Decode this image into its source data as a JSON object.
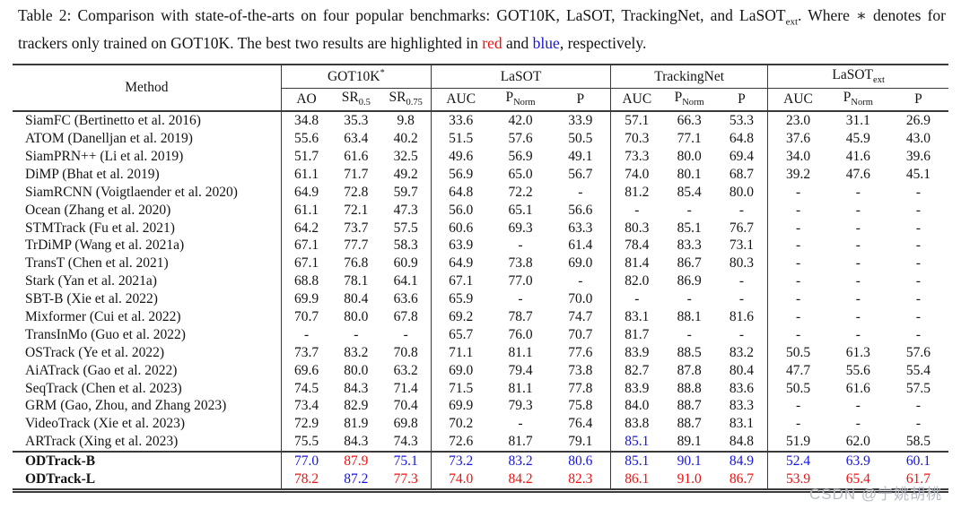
{
  "colors": {
    "red": "#ee1111",
    "blue": "#1515dd",
    "text": "#141414",
    "rule": "#3a3a3a",
    "watermark": "#b7bdc6"
  },
  "caption": {
    "segments": [
      {
        "t": "Table 2: Comparison with state-of-the-arts on four popular benchmarks: GOT10K, LaSOT, TrackingNet, and LaSOT"
      },
      {
        "t": "ext",
        "sub": true
      },
      {
        "t": ". Where ∗ denotes for trackers only trained on GOT10K. The best two results are highlighted in "
      },
      {
        "t": "red",
        "c": "red"
      },
      {
        "t": " and "
      },
      {
        "t": "blue",
        "c": "blue"
      },
      {
        "t": ", respectively."
      }
    ]
  },
  "watermark": "CSDN @宁姚胡桃",
  "table": {
    "method_header": "Method",
    "groups": [
      {
        "base": "GOT10K",
        "sup": "*",
        "cols": [
          {
            "base": "AO"
          },
          {
            "base": "SR",
            "sub": "0.5"
          },
          {
            "base": "SR",
            "sub": "0.75"
          }
        ]
      },
      {
        "base": "LaSOT",
        "cols": [
          {
            "base": "AUC"
          },
          {
            "base": "P",
            "sub": "Norm"
          },
          {
            "base": "P"
          }
        ]
      },
      {
        "base": "TrackingNet",
        "cols": [
          {
            "base": "AUC"
          },
          {
            "base": "P",
            "sub": "Norm"
          },
          {
            "base": "P"
          }
        ]
      },
      {
        "base": "LaSOT",
        "sub": "ext",
        "cols": [
          {
            "base": "AUC"
          },
          {
            "base": "P",
            "sub": "Norm"
          },
          {
            "base": "P"
          }
        ]
      }
    ],
    "rows": [
      {
        "method": "SiamFC (Bertinetto et al. 2016)",
        "values": [
          "34.8",
          "35.3",
          "9.8",
          "33.6",
          "42.0",
          "33.9",
          "57.1",
          "66.3",
          "53.3",
          "23.0",
          "31.1",
          "26.9"
        ]
      },
      {
        "method": "ATOM (Danelljan et al. 2019)",
        "values": [
          "55.6",
          "63.4",
          "40.2",
          "51.5",
          "57.6",
          "50.5",
          "70.3",
          "77.1",
          "64.8",
          "37.6",
          "45.9",
          "43.0"
        ]
      },
      {
        "method": "SiamPRN++ (Li et al. 2019)",
        "values": [
          "51.7",
          "61.6",
          "32.5",
          "49.6",
          "56.9",
          "49.1",
          "73.3",
          "80.0",
          "69.4",
          "34.0",
          "41.6",
          "39.6"
        ]
      },
      {
        "method": "DiMP (Bhat et al. 2019)",
        "values": [
          "61.1",
          "71.7",
          "49.2",
          "56.9",
          "65.0",
          "56.7",
          "74.0",
          "80.1",
          "68.7",
          "39.2",
          "47.6",
          "45.1"
        ]
      },
      {
        "method": "SiamRCNN (Voigtlaender et al. 2020)",
        "values": [
          "64.9",
          "72.8",
          "59.7",
          "64.8",
          "72.2",
          "-",
          "81.2",
          "85.4",
          "80.0",
          "-",
          "-",
          "-"
        ]
      },
      {
        "method": "Ocean (Zhang et al. 2020)",
        "values": [
          "61.1",
          "72.1",
          "47.3",
          "56.0",
          "65.1",
          "56.6",
          "-",
          "-",
          "-",
          "-",
          "-",
          "-"
        ]
      },
      {
        "method": "STMTrack (Fu et al. 2021)",
        "values": [
          "64.2",
          "73.7",
          "57.5",
          "60.6",
          "69.3",
          "63.3",
          "80.3",
          "85.1",
          "76.7",
          "-",
          "-",
          "-"
        ]
      },
      {
        "method": "TrDiMP (Wang et al. 2021a)",
        "values": [
          "67.1",
          "77.7",
          "58.3",
          "63.9",
          "-",
          "61.4",
          "78.4",
          "83.3",
          "73.1",
          "-",
          "-",
          "-"
        ]
      },
      {
        "method": "TransT (Chen et al. 2021)",
        "values": [
          "67.1",
          "76.8",
          "60.9",
          "64.9",
          "73.8",
          "69.0",
          "81.4",
          "86.7",
          "80.3",
          "-",
          "-",
          "-"
        ]
      },
      {
        "method": "Stark (Yan et al. 2021a)",
        "values": [
          "68.8",
          "78.1",
          "64.1",
          "67.1",
          "77.0",
          "-",
          "82.0",
          "86.9",
          "-",
          "-",
          "-",
          "-"
        ]
      },
      {
        "method": "SBT-B (Xie et al. 2022)",
        "values": [
          "69.9",
          "80.4",
          "63.6",
          "65.9",
          "-",
          "70.0",
          "-",
          "-",
          "-",
          "-",
          "-",
          "-"
        ]
      },
      {
        "method": "Mixformer (Cui et al. 2022)",
        "values": [
          "70.7",
          "80.0",
          "67.8",
          "69.2",
          "78.7",
          "74.7",
          "83.1",
          "88.1",
          "81.6",
          "-",
          "-",
          "-"
        ]
      },
      {
        "method": "TransInMo (Guo et al. 2022)",
        "values": [
          "-",
          "-",
          "-",
          "65.7",
          "76.0",
          "70.7",
          "81.7",
          "-",
          "-",
          "-",
          "-",
          "-"
        ]
      },
      {
        "method": "OSTrack (Ye et al. 2022)",
        "values": [
          "73.7",
          "83.2",
          "70.8",
          "71.1",
          "81.1",
          "77.6",
          "83.9",
          "88.5",
          "83.2",
          "50.5",
          "61.3",
          "57.6"
        ]
      },
      {
        "method": "AiATrack (Gao et al. 2022)",
        "values": [
          "69.6",
          "80.0",
          "63.2",
          "69.0",
          "79.4",
          "73.8",
          "82.7",
          "87.8",
          "80.4",
          "47.7",
          "55.6",
          "55.4"
        ]
      },
      {
        "method": "SeqTrack (Chen et al. 2023)",
        "values": [
          "74.5",
          "84.3",
          "71.4",
          "71.5",
          "81.1",
          "77.8",
          "83.9",
          "88.8",
          "83.6",
          "50.5",
          "61.6",
          "57.5"
        ]
      },
      {
        "method": "GRM (Gao, Zhou, and Zhang 2023)",
        "values": [
          "73.4",
          "82.9",
          "70.4",
          "69.9",
          "79.3",
          "75.8",
          "84.0",
          "88.7",
          "83.3",
          "-",
          "-",
          "-"
        ]
      },
      {
        "method": "VideoTrack (Xie et al. 2023)",
        "values": [
          "72.9",
          "81.9",
          "69.8",
          "70.2",
          "-",
          "76.4",
          "83.8",
          "88.7",
          "83.1",
          "-",
          "-",
          "-"
        ]
      },
      {
        "method": "ARTrack (Xing et al. 2023)",
        "values": [
          "75.5",
          "84.3",
          "74.3",
          "72.6",
          "81.7",
          "79.1",
          "85.1",
          "89.1",
          "84.8",
          "51.9",
          "62.0",
          "58.5"
        ],
        "overrides": {
          "6": "blue"
        }
      },
      {
        "method": "ODTrack-B",
        "bold": true,
        "sep": true,
        "color": "blue",
        "overrides": {
          "1": "red"
        },
        "values": [
          "77.0",
          "87.9",
          "75.1",
          "73.2",
          "83.2",
          "80.6",
          "85.1",
          "90.1",
          "84.9",
          "52.4",
          "63.9",
          "60.1"
        ]
      },
      {
        "method": "ODTrack-L",
        "bold": true,
        "color": "red",
        "overrides": {
          "1": "blue"
        },
        "values": [
          "78.2",
          "87.2",
          "77.3",
          "74.0",
          "84.2",
          "82.3",
          "86.1",
          "91.0",
          "86.7",
          "53.9",
          "65.4",
          "61.7"
        ]
      }
    ]
  }
}
